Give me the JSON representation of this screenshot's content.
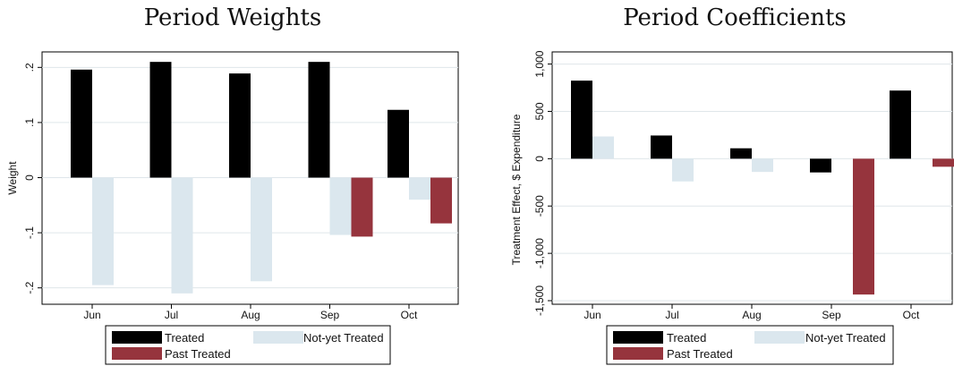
{
  "colors": {
    "treated": "#000000",
    "not_yet": "#dbe7ee",
    "past": "#96343d",
    "grid": "#dfe6ea",
    "frame": "#000000"
  },
  "chart_data": [
    {
      "type": "bar",
      "title": "Period Weights",
      "xlabel": "",
      "ylabel": "Weight",
      "categories": [
        "Jun",
        "Jul",
        "Aug",
        "Sep",
        "Oct"
      ],
      "ylim": [
        -0.22,
        0.22
      ],
      "yticks": [
        -0.2,
        -0.1,
        0,
        0.1,
        0.2
      ],
      "yticklabels": [
        "-.2",
        "-.1",
        "0",
        ".1",
        ".2"
      ],
      "grid": true,
      "legend": "bottom",
      "series": [
        {
          "name": "Treated",
          "values": [
            0.196,
            0.21,
            0.189,
            0.21,
            0.123
          ]
        },
        {
          "name": "Not-yet Treated",
          "values": [
            -0.195,
            -0.21,
            -0.188,
            -0.104,
            -0.04
          ]
        },
        {
          "name": "Past Treated",
          "values": [
            null,
            null,
            null,
            -0.107,
            -0.083
          ]
        }
      ]
    },
    {
      "type": "bar",
      "title": "Period Coefficients",
      "xlabel": "",
      "ylabel": "Treatment Effect, $ Expenditure",
      "categories": [
        "Jun",
        "Jul",
        "Aug",
        "Sep",
        "Oct"
      ],
      "ylim": [
        -1500,
        1100
      ],
      "yticks": [
        -1500,
        -1000,
        -500,
        0,
        500,
        1000
      ],
      "yticklabels": [
        "-1,500",
        "-1,000",
        "-500",
        "0",
        "500",
        "1,000"
      ],
      "grid": true,
      "legend": "bottom",
      "series": [
        {
          "name": "Treated",
          "values": [
            825,
            245,
            110,
            -145,
            720
          ]
        },
        {
          "name": "Not-yet Treated",
          "values": [
            235,
            -240,
            -140,
            null,
            null
          ]
        },
        {
          "name": "Past Treated",
          "values": [
            null,
            null,
            null,
            -1435,
            -85
          ]
        }
      ]
    }
  ]
}
